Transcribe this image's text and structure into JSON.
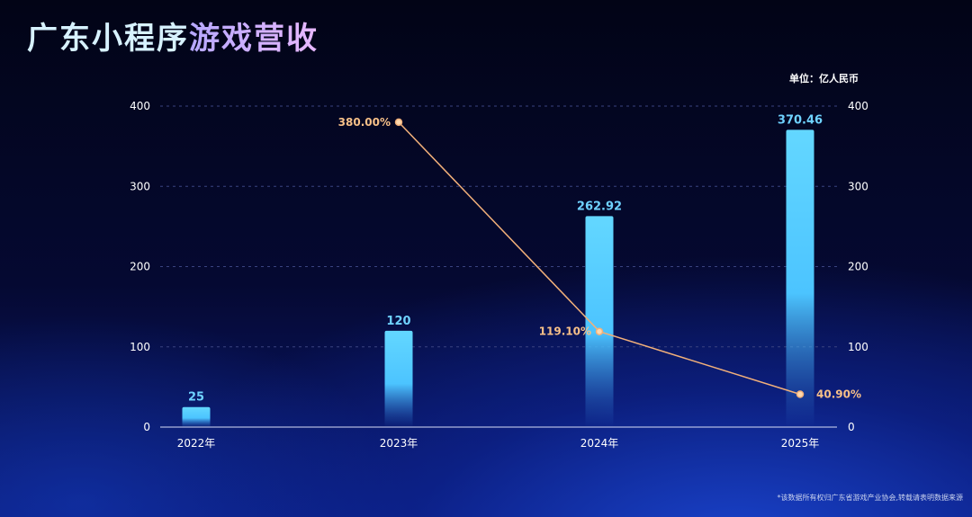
{
  "title": {
    "part1": "广东小程序",
    "part2": "游戏营收"
  },
  "unit_label": "单位：亿人民币",
  "footnote": "*该数据所有权归广东省游戏产业协会,转载请表明数据来源",
  "colors": {
    "bar_top": "#5fd3ff",
    "line": "#f2b07a",
    "grid": "#3a4380"
  },
  "chart_data": {
    "type": "bar",
    "title": "广东小程序游戏营收",
    "categories": [
      "2022年",
      "2023年",
      "2024年",
      "2025年"
    ],
    "series": [
      {
        "type": "bar",
        "axis": "left",
        "values": [
          25,
          120,
          262.92,
          370.46
        ],
        "labels": [
          "25",
          "120",
          "262.92",
          "370.46"
        ]
      },
      {
        "type": "line",
        "axis": "right",
        "x": [
          "2023年",
          "2024年",
          "2025年"
        ],
        "values": [
          380.0,
          119.1,
          40.9
        ],
        "labels": [
          "380.00%",
          "119.10%",
          "40.90%"
        ]
      }
    ],
    "ylim_left": [
      0,
      400
    ],
    "yticks_left": [
      0,
      100,
      200,
      300,
      400
    ],
    "ylim_right": [
      0,
      400
    ],
    "yticks_right": [
      0,
      100,
      200,
      300,
      400
    ],
    "grid": true
  }
}
